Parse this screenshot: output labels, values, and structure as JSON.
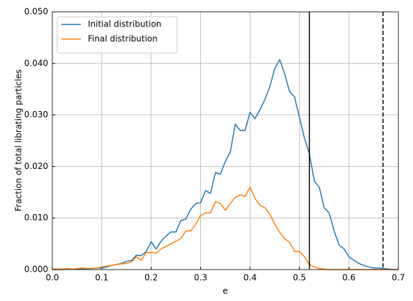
{
  "chart_data": {
    "type": "line",
    "xlabel": "e",
    "ylabel": "Fraction of total librating particles",
    "x": [
      0,
      0.01,
      0.02,
      0.03,
      0.04,
      0.05,
      0.06,
      0.07,
      0.08,
      0.09,
      0.1,
      0.11,
      0.12,
      0.13,
      0.14,
      0.15,
      0.16,
      0.17,
      0.18,
      0.19,
      0.2,
      0.21,
      0.22,
      0.23,
      0.24,
      0.25,
      0.26,
      0.27,
      0.28,
      0.29,
      0.3,
      0.31,
      0.32,
      0.33,
      0.34,
      0.35,
      0.36,
      0.37,
      0.38,
      0.39,
      0.4,
      0.41,
      0.42,
      0.43,
      0.44,
      0.45,
      0.46,
      0.47,
      0.48,
      0.49,
      0.5,
      0.51,
      0.52,
      0.53,
      0.54,
      0.55,
      0.56,
      0.57,
      0.58,
      0.59,
      0.6,
      0.61,
      0.62,
      0.63,
      0.64,
      0.65,
      0.66,
      0.67,
      0.68,
      0.69,
      0.7
    ],
    "series": [
      {
        "name": "Initial distribution",
        "color": "#1f77b4",
        "values": [
          0,
          0,
          0,
          0.0001,
          0.0001,
          0.0001,
          0.0002,
          0.0001,
          0.0002,
          0.0003,
          0.0003,
          0.0005,
          0.0008,
          0.001,
          0.0012,
          0.0016,
          0.0018,
          0.0028,
          0.0027,
          0.0035,
          0.0054,
          0.004,
          0.0055,
          0.0065,
          0.0073,
          0.0073,
          0.0095,
          0.0098,
          0.0117,
          0.0128,
          0.013,
          0.0153,
          0.0148,
          0.0188,
          0.0185,
          0.021,
          0.0228,
          0.0282,
          0.027,
          0.027,
          0.0305,
          0.0293,
          0.031,
          0.033,
          0.0355,
          0.039,
          0.0407,
          0.038,
          0.0345,
          0.0335,
          0.0295,
          0.0255,
          0.0225,
          0.0172,
          0.016,
          0.012,
          0.011,
          0.0075,
          0.0048,
          0.004,
          0.0025,
          0.0018,
          0.0012,
          0.0008,
          0.0005,
          0.0003,
          0.0003,
          0.0002,
          0.0001,
          0,
          0
        ]
      },
      {
        "name": "Final distribution",
        "color": "#ff7f0e",
        "values": [
          0.0001,
          0.0001,
          0.0001,
          0.0002,
          0.0001,
          0.0002,
          0.0003,
          0.0002,
          0.0002,
          0.0003,
          0.0005,
          0.0007,
          0.0008,
          0.001,
          0.0011,
          0.0012,
          0.0015,
          0.0025,
          0.0018,
          0.0033,
          0.0033,
          0.0032,
          0.004,
          0.0045,
          0.005,
          0.0055,
          0.006,
          0.0075,
          0.0075,
          0.0088,
          0.0105,
          0.011,
          0.011,
          0.0132,
          0.0128,
          0.0115,
          0.0128,
          0.014,
          0.0145,
          0.0142,
          0.016,
          0.0138,
          0.0125,
          0.012,
          0.0108,
          0.0088,
          0.0072,
          0.006,
          0.0053,
          0.0035,
          0.0035,
          0.0025,
          0.001,
          0.0005,
          0.0002,
          0.0001,
          0,
          0,
          0,
          0,
          0,
          0,
          0,
          0,
          0,
          0,
          0,
          0,
          0,
          0,
          0
        ]
      }
    ],
    "vlines": [
      {
        "x": 0.52,
        "style": "solid",
        "color": "#000000"
      },
      {
        "x": 0.669,
        "style": "dashed",
        "color": "#000000"
      }
    ],
    "xlim": [
      0,
      0.7
    ],
    "ylim": [
      0,
      0.05
    ],
    "xticks": [
      {
        "value": 0,
        "label": "0.0"
      },
      {
        "value": 0.1,
        "label": "0.1"
      },
      {
        "value": 0.2,
        "label": "0.2"
      },
      {
        "value": 0.3,
        "label": "0.3"
      },
      {
        "value": 0.4,
        "label": "0.4"
      },
      {
        "value": 0.5,
        "label": "0.5"
      },
      {
        "value": 0.6,
        "label": "0.6"
      },
      {
        "value": 0.7,
        "label": "0.7"
      }
    ],
    "yticks": [
      {
        "value": 0,
        "label": "0.000"
      },
      {
        "value": 0.01,
        "label": "0.010"
      },
      {
        "value": 0.02,
        "label": "0.020"
      },
      {
        "value": 0.03,
        "label": "0.030"
      },
      {
        "value": 0.04,
        "label": "0.040"
      },
      {
        "value": 0.05,
        "label": "0.050"
      }
    ],
    "grid": true,
    "legend": "upper left"
  }
}
